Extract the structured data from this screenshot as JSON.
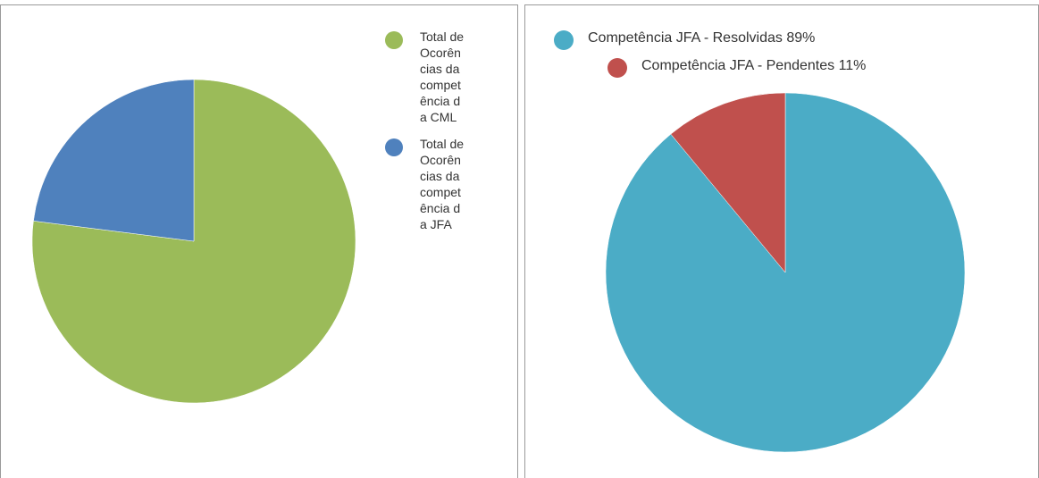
{
  "chart_data": [
    {
      "type": "pie",
      "categories": [
        "Total de Ocorências da competência da CML",
        "Total de Ocorências da competência da JFA"
      ],
      "values": [
        77,
        23
      ],
      "colors": [
        "#9bbb59",
        "#4f81bd"
      ],
      "legend": "right"
    },
    {
      "type": "pie",
      "categories": [
        "Competência JFA - Resolvidas 89%",
        "Competência JFA - Pendentes 11%"
      ],
      "values": [
        89,
        11
      ],
      "colors": [
        "#4bacc6",
        "#c0504d"
      ],
      "legend": "top"
    }
  ]
}
